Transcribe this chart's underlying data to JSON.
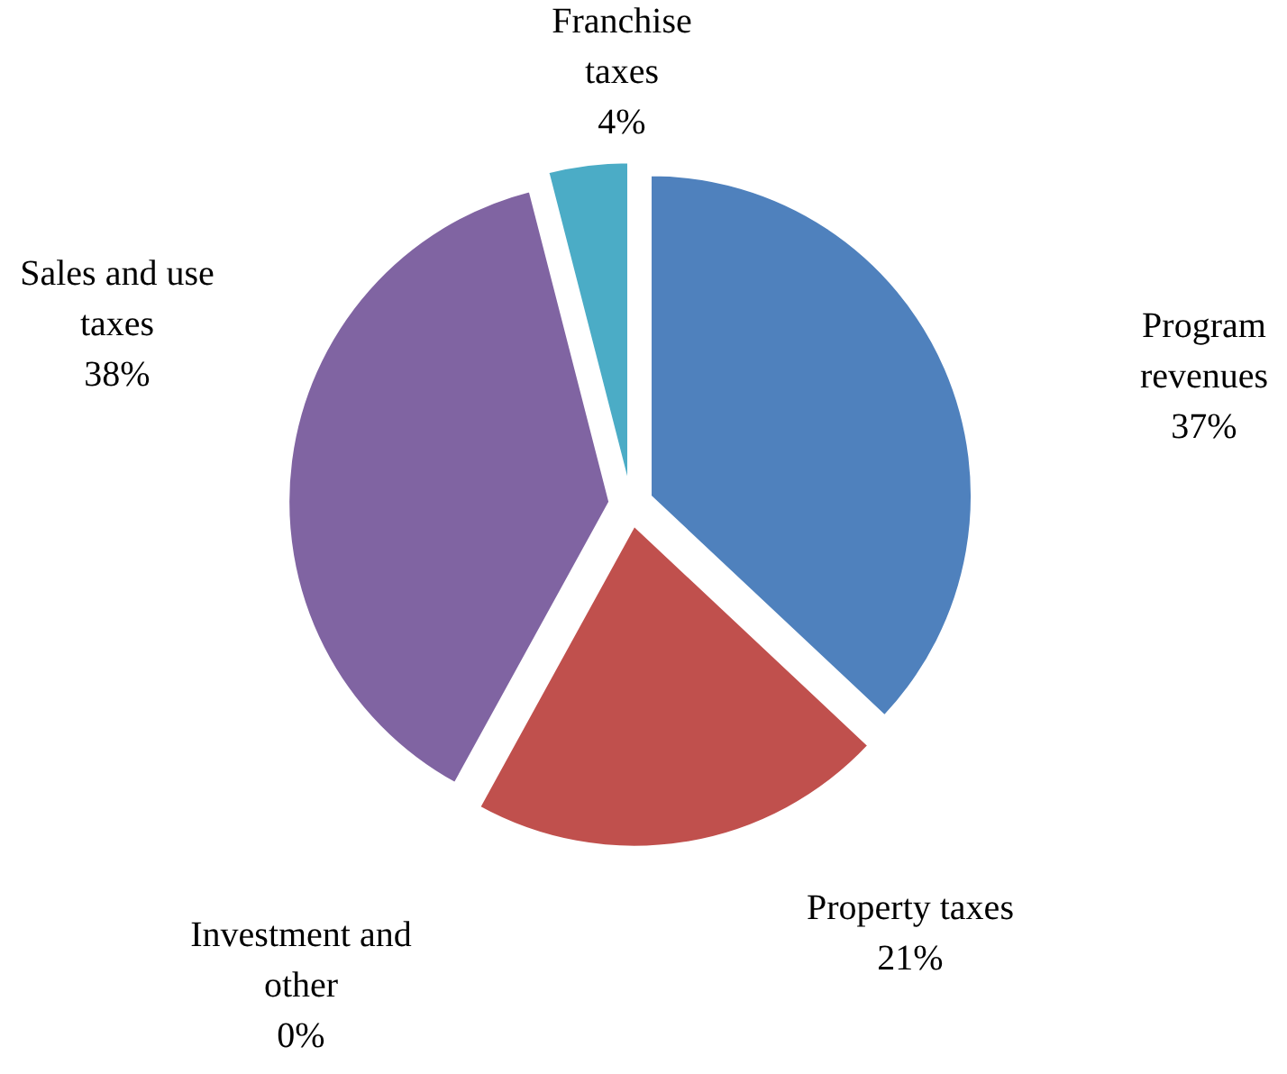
{
  "chart_data": {
    "type": "pie",
    "categories": [
      "Program revenues",
      "Property taxes",
      "Investment and other",
      "Sales and use taxes",
      "Franchise taxes"
    ],
    "values": [
      37,
      21,
      0,
      38,
      4
    ],
    "value_labels": [
      "37%",
      "21%",
      "0%",
      "38%",
      "4%"
    ],
    "colors": [
      "#4f81bd",
      "#c0504d",
      "#9bbb59",
      "#8064a2",
      "#4bacc6"
    ],
    "legend": false
  }
}
